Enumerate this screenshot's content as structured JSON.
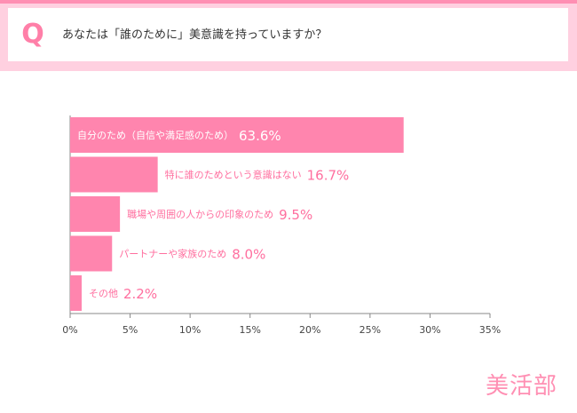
{
  "question": {
    "mark": "Q",
    "text": "あなたは「誰のために」美意識を持っていますか？"
  },
  "brand": "美活部",
  "colors": {
    "bar": "#ff85ae",
    "label_inside": "#ffffff",
    "label_outside": "#ff6f9f",
    "axis": "#888888",
    "frame": "#ffd0e0",
    "accent": "#ff8fb3"
  },
  "chart_data": {
    "type": "bar",
    "orientation": "horizontal",
    "categories": [
      "自分のため（自信や満足感のため）",
      "特に誰のためという意識はない",
      "職場や周囲の人からの印象のため",
      "パートナーや家族のため",
      "その他"
    ],
    "values": [
      63.6,
      16.7,
      9.5,
      8.0,
      2.2
    ],
    "value_labels": [
      "63.6%",
      "16.7%",
      "9.5%",
      "8.0%",
      "2.2%"
    ],
    "xlim": [
      0,
      35
    ],
    "xticks": [
      "0%",
      "5%",
      "10%",
      "15%",
      "20%",
      "25%",
      "30%",
      "35%"
    ],
    "grid": false,
    "xlabel": "",
    "ylabel": ""
  }
}
